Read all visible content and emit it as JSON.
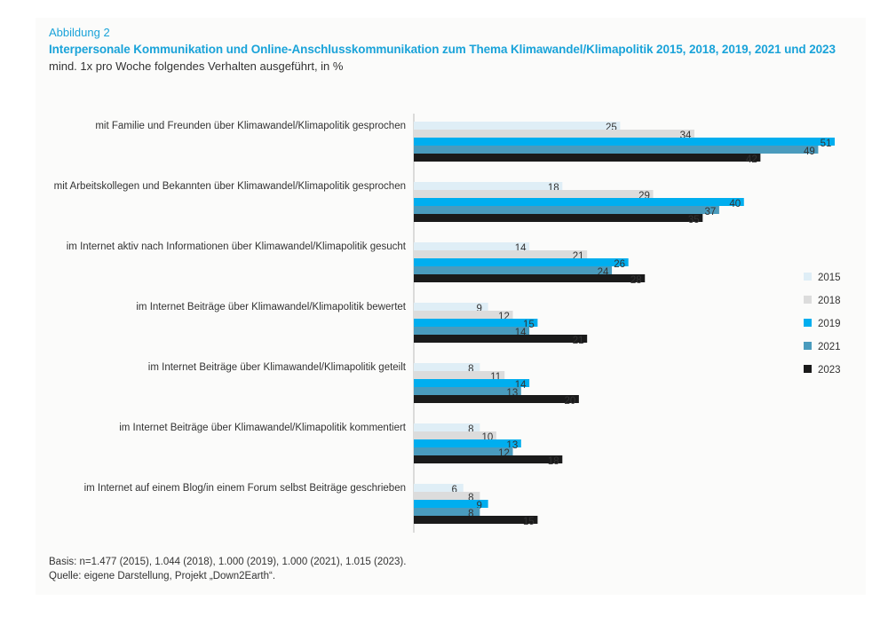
{
  "figure": {
    "label": "Abbildung 2",
    "title": "Interpersonale Kommunikation und Online-Anschlusskommunikation zum Thema Klimawandel/Klimapolitik 2015, 2018, 2019, 2021 und 2023",
    "subtitle": "mind. 1x pro Woche folgendes Verhalten ausgeführt, in %",
    "basis": "Basis: n=1.477 (2015), 1.044 (2018), 1.000 (2019), 1.000 (2021), 1.015 (2023).",
    "source": "Quelle: eigene Darstellung, Projekt „Down2Earth“."
  },
  "chart_data": {
    "type": "bar",
    "orientation": "horizontal",
    "title": "Interpersonale Kommunikation und Online-Anschlusskommunikation zum Thema Klimawandel/Klimapolitik 2015, 2018, 2019, 2021 und 2023",
    "subtitle": "mind. 1x pro Woche folgendes Verhalten ausgeführt, in %",
    "xlim": [
      0,
      51
    ],
    "grid": false,
    "legend_position": "right",
    "categories": [
      "mit Familie und Freunden über Klimawandel/Klimapolitik gesprochen",
      "mit Arbeitskollegen und Bekannten über Klimawandel/Klimapolitik gesprochen",
      "im Internet aktiv nach Informationen über Klimawandel/Klimapolitik gesucht",
      "im Internet Beiträge über Klimawandel/Klimapolitik bewertet",
      "im Internet Beiträge über Klimawandel/Klimapolitik geteilt",
      "im Internet Beiträge über Klimawandel/Klimapolitik kommentiert",
      "im Internet auf einem Blog/in einem Forum selbst Beiträge geschrieben"
    ],
    "series": [
      {
        "name": "2015",
        "color": "#dfeef6",
        "values": [
          25,
          18,
          14,
          9,
          8,
          8,
          6
        ]
      },
      {
        "name": "2018",
        "color": "#dcdcdc",
        "values": [
          34,
          29,
          21,
          12,
          11,
          10,
          8
        ]
      },
      {
        "name": "2019",
        "color": "#00aeef",
        "values": [
          51,
          40,
          26,
          15,
          14,
          13,
          9
        ]
      },
      {
        "name": "2021",
        "color": "#4a9bbd",
        "values": [
          49,
          37,
          24,
          14,
          13,
          12,
          8
        ]
      },
      {
        "name": "2023",
        "color": "#1a1a1a",
        "values": [
          42,
          35,
          28,
          21,
          20,
          18,
          15
        ]
      }
    ]
  }
}
